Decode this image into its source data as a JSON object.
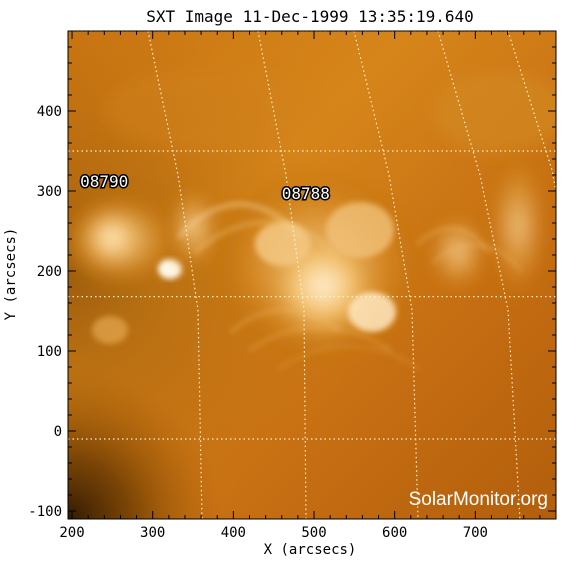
{
  "title": "SXT Image 11-Dec-1999 13:35:19.640",
  "watermark": "SolarMonitor.org",
  "xlabel": "X (arcsecs)",
  "ylabel": "Y (arcsecs)",
  "colors": {
    "background": "#ffffff",
    "axis": "#000000",
    "grid": "#fff6d6",
    "sun_base": "#b86a10",
    "sun_bright": "#ffe7bd",
    "sun_dark": "#2c1600",
    "label_text": "#ffffff",
    "label_outline": "#000000"
  },
  "chart_data": {
    "type": "other",
    "title": "SXT Image 11-Dec-1999 13:35:19.640",
    "xlabel": "X (arcsecs)",
    "ylabel": "Y (arcsecs)",
    "xlim": [
      195,
      800
    ],
    "ylim": [
      -110,
      500
    ],
    "xticks": [
      200,
      300,
      400,
      500,
      600,
      700
    ],
    "yticks": [
      -100,
      0,
      100,
      200,
      300,
      400
    ],
    "grid": true,
    "annotations": [
      {
        "text": "08790",
        "x": 210,
        "y": 305
      },
      {
        "text": "08788",
        "x": 460,
        "y": 290
      }
    ],
    "watermark": "SolarMonitor.org"
  }
}
